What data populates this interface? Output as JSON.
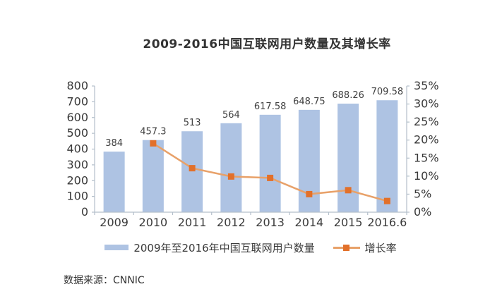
{
  "chart_data": {
    "type": "bar",
    "combo": "bar+line",
    "title": "2009-2016中国互联网用户数量及其增长率",
    "source": "数据来源：CNNIC",
    "categories": [
      "2009",
      "2010",
      "2011",
      "2012",
      "2013",
      "2014",
      "2015",
      "2016.6"
    ],
    "series": [
      {
        "name": "2009年至2016年中国互联网用户数量",
        "type": "bar",
        "axis": "left",
        "values": [
          384,
          457.3,
          513,
          564,
          617.58,
          648.75,
          688.26,
          709.58
        ],
        "data_labels": [
          "384",
          "457.3",
          "513",
          "564",
          "617.58",
          "648.75",
          "688.26",
          "709.58"
        ]
      },
      {
        "name": "增长率",
        "type": "line",
        "axis": "right",
        "values_pct": [
          null,
          19.1,
          12.2,
          9.9,
          9.5,
          5.0,
          6.1,
          3.1
        ]
      }
    ],
    "left_axis": {
      "min": 0,
      "max": 800,
      "ticks": [
        "800",
        "700",
        "600",
        "500",
        "400",
        "300",
        "200",
        "100",
        "0"
      ]
    },
    "right_axis": {
      "min": 0,
      "max": 35,
      "ticks": [
        "35%",
        "30%",
        "25%",
        "20%",
        "15%",
        "10%",
        "5%",
        "0%"
      ]
    },
    "legend": {
      "bars": "2009年至2016年中国互联网用户数量",
      "line": "增长率"
    },
    "legend_position": "bottom",
    "grid": "off",
    "colors": {
      "bar": "#aec3e3",
      "line": "#e8a169",
      "marker": "#e2702a",
      "axis": "#b3bfca",
      "text": "#3a3a3a"
    }
  }
}
